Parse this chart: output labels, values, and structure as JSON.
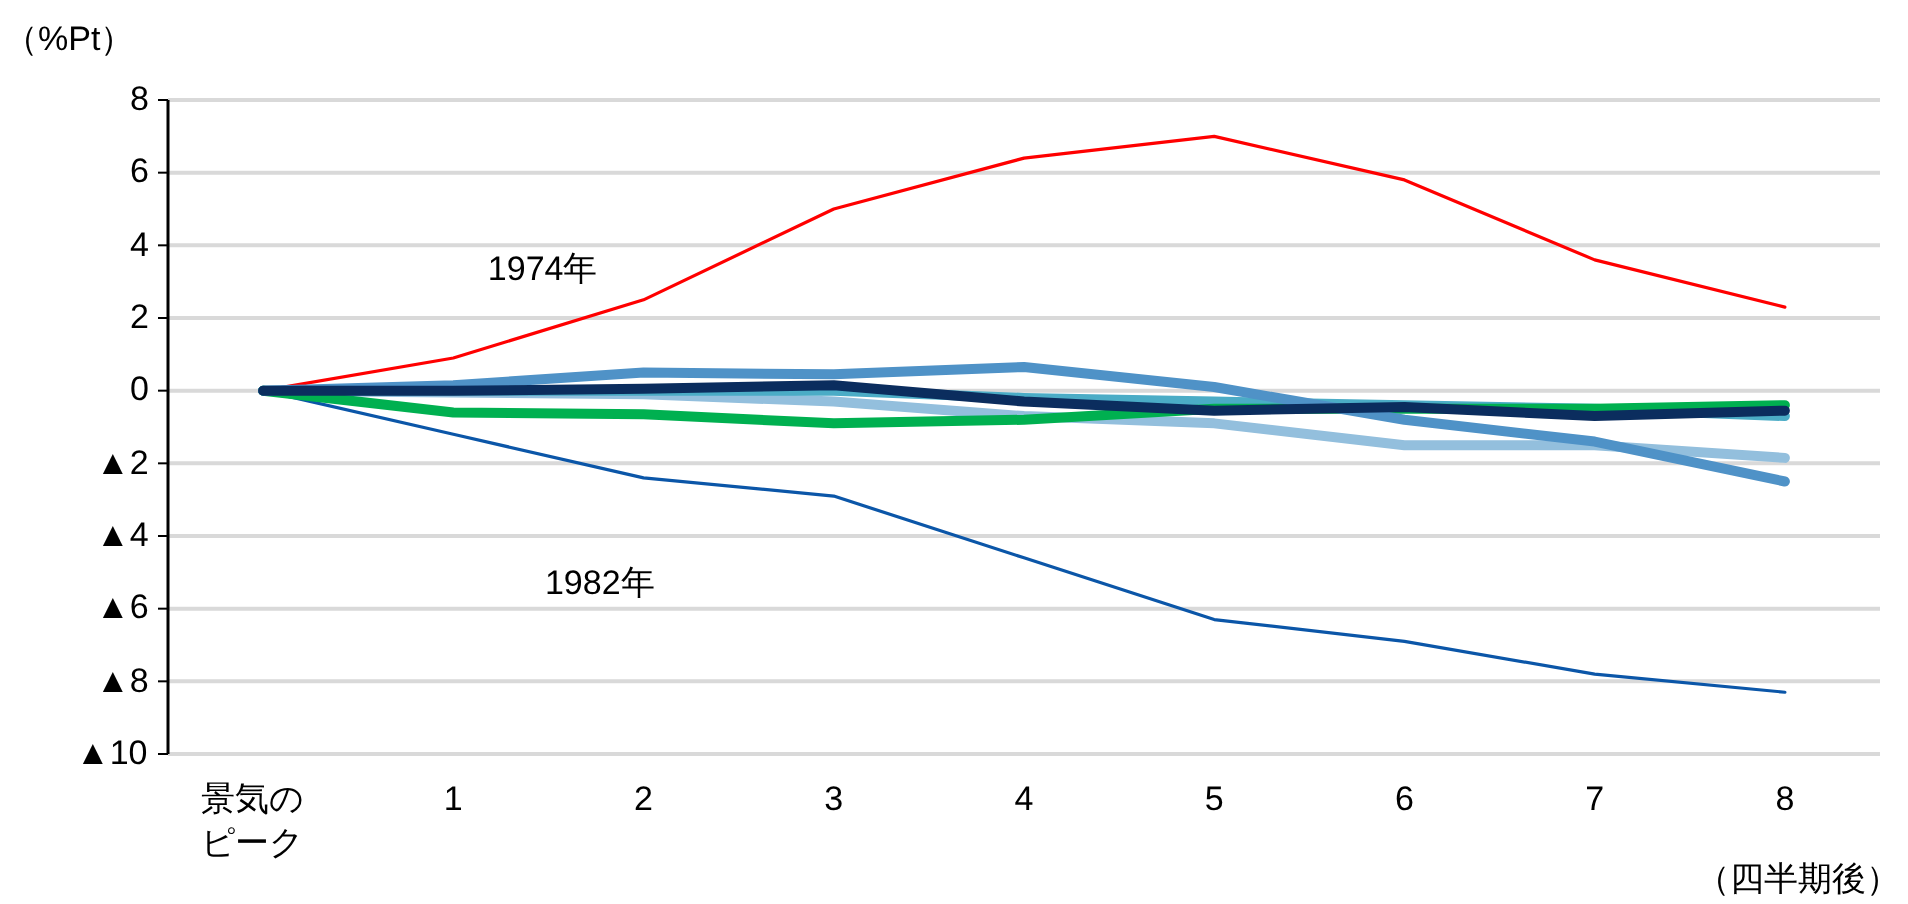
{
  "chart_data": {
    "type": "line",
    "ylabel": "（%Pt）",
    "xlabel": "（四半期後）",
    "categories": [
      "景気のピーク",
      "1",
      "2",
      "3",
      "4",
      "5",
      "6",
      "7",
      "8"
    ],
    "ylim": [
      -10,
      8
    ],
    "yticks": [
      8,
      6,
      4,
      2,
      0,
      {
        "value": -2,
        "label": "▲2"
      },
      {
        "value": -4,
        "label": "▲4"
      },
      {
        "value": -6,
        "label": "▲6"
      },
      {
        "value": -8,
        "label": "▲8"
      },
      {
        "value": -10,
        "label": "▲10"
      }
    ],
    "grid": "y",
    "legend": false,
    "marker": "none",
    "line_style": "solid",
    "series": [
      {
        "name": "1974年",
        "color": "#ff0000",
        "values": [
          0,
          0.9,
          2.5,
          5.0,
          6.4,
          7.0,
          5.8,
          3.6,
          2.3
        ]
      },
      {
        "name": "1982年",
        "color": "#0b56a8",
        "values": [
          0,
          -1.2,
          -2.4,
          -2.9,
          -4.6,
          -6.3,
          -6.9,
          -7.8,
          -8.3
        ]
      },
      {
        "color": "#93bfdd",
        "values": [
          0,
          -0.05,
          -0.1,
          -0.3,
          -0.7,
          -0.9,
          -1.5,
          -1.5,
          -1.85
        ]
      },
      {
        "color": "#4bacc6",
        "values": [
          0,
          0,
          0,
          0,
          -0.2,
          -0.3,
          -0.4,
          -0.5,
          -0.7
        ]
      },
      {
        "color": "#00b050",
        "values": [
          0,
          -0.6,
          -0.65,
          -0.9,
          -0.8,
          -0.5,
          -0.5,
          -0.5,
          -0.4
        ]
      },
      {
        "color": "#4f92c7",
        "values": [
          0,
          0.15,
          0.5,
          0.45,
          0.65,
          0.1,
          -0.8,
          -1.4,
          -2.5
        ]
      },
      {
        "color": "#0b2d5e",
        "values": [
          0,
          0,
          0.05,
          0.15,
          -0.3,
          -0.55,
          -0.45,
          -0.7,
          -0.55
        ]
      }
    ]
  }
}
